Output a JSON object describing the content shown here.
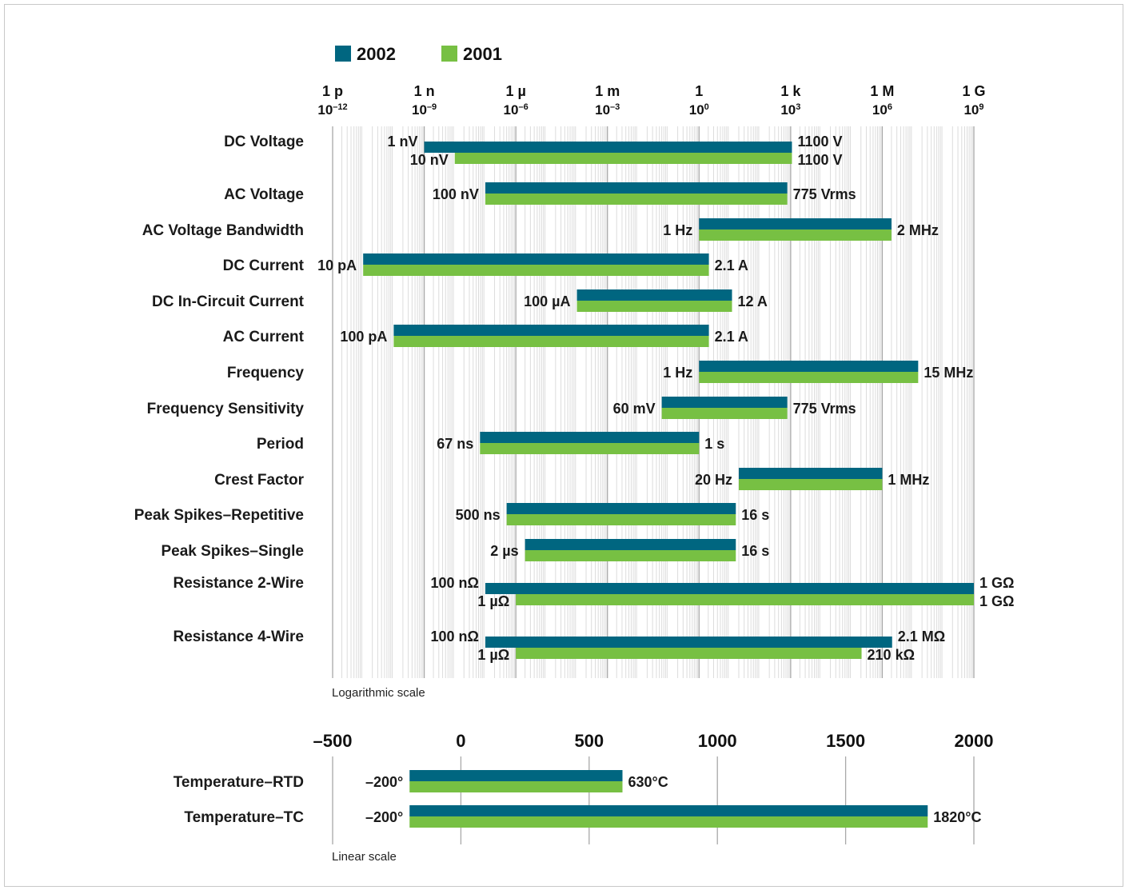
{
  "colors": {
    "s2002": "#006680",
    "s2001": "#77C043",
    "grid_major": "#a8a8a8",
    "grid_minor": "#dcdcdc"
  },
  "legend": [
    {
      "name": "2002"
    },
    {
      "name": "2001"
    }
  ],
  "chart_data": [
    {
      "type": "bar",
      "orientation": "horizontal-range",
      "scale": "log",
      "xlim_exp": [
        -12,
        9
      ],
      "ticks": [
        {
          "prefix": "1 p",
          "power": "10",
          "exp": "–12"
        },
        {
          "prefix": "1 n",
          "power": "10",
          "exp": "–9"
        },
        {
          "prefix": "1 µ",
          "power": "10",
          "exp": "–6"
        },
        {
          "prefix": "1 m",
          "power": "10",
          "exp": "–3"
        },
        {
          "prefix": "1",
          "power": "10",
          "exp": "0"
        },
        {
          "prefix": "1 k",
          "power": "10",
          "exp": "3"
        },
        {
          "prefix": "1 M",
          "power": "10",
          "exp": "6"
        },
        {
          "prefix": "1 G",
          "power": "10",
          "exp": "9"
        }
      ],
      "scale_note": "Logarithmic scale",
      "series": [
        "2002",
        "2001"
      ],
      "rows": [
        {
          "label": "DC Voltage",
          "split": true,
          "s2002": {
            "min": 1e-09,
            "max": 1100,
            "min_label": "1 nV",
            "max_label": "1100 V"
          },
          "s2001": {
            "min": 1e-08,
            "max": 1100,
            "min_label": "10 nV",
            "max_label": "1100 V"
          }
        },
        {
          "label": "AC Voltage",
          "min": 1e-07,
          "max": 775,
          "min_label": "100 nV",
          "max_label": "775 Vrms"
        },
        {
          "label": "AC Voltage Bandwidth",
          "min": 1,
          "max": 2000000.0,
          "min_label": "1 Hz",
          "max_label": "2 MHz"
        },
        {
          "label": "DC Current",
          "min": 1e-11,
          "max": 2.1,
          "min_label": "10 pA",
          "max_label": "2.1 A"
        },
        {
          "label": "DC In-Circuit Current",
          "min": 0.0001,
          "max": 12,
          "min_label": "100 µA",
          "max_label": "12 A"
        },
        {
          "label": "AC Current",
          "min": 1e-10,
          "max": 2.1,
          "min_label": "100 pA",
          "max_label": "2.1 A"
        },
        {
          "label": "Frequency",
          "min": 1,
          "max": 15000000.0,
          "min_label": "1 Hz",
          "max_label": "15 MHz"
        },
        {
          "label": "Frequency Sensitivity",
          "min": 0.06,
          "max": 775,
          "min_label": "60 mV",
          "max_label": "775 Vrms"
        },
        {
          "label": "Period",
          "min": 6.7e-08,
          "max": 1,
          "min_label": "67 ns",
          "max_label": "1 s"
        },
        {
          "label": "Crest Factor",
          "min": 20,
          "max": 1000000.0,
          "min_label": "20 Hz",
          "max_label": "1 MHz"
        },
        {
          "label": "Peak Spikes–Repetitive",
          "min": 5e-07,
          "max": 16,
          "min_label": "500 ns",
          "max_label": "16 s"
        },
        {
          "label": "Peak Spikes–Single",
          "min": 2e-06,
          "max": 16,
          "min_label": "2 µs",
          "max_label": "16 s"
        },
        {
          "label": "Resistance 2-Wire",
          "split": true,
          "s2002": {
            "min": 1e-07,
            "max": 1000000000.0,
            "min_label": "100 nΩ",
            "max_label": "1 GΩ"
          },
          "s2001": {
            "min": 1e-06,
            "max": 1000000000.0,
            "min_label": "1 µΩ",
            "max_label": "1 GΩ"
          }
        },
        {
          "label": "Resistance 4-Wire",
          "split": true,
          "s2002": {
            "min": 1e-07,
            "max": 2100000.0,
            "min_label": "100 nΩ",
            "max_label": "2.1 MΩ"
          },
          "s2001": {
            "min": 1e-06,
            "max": 210000.0,
            "min_label": "1 µΩ",
            "max_label": "210 kΩ"
          }
        }
      ]
    },
    {
      "type": "bar",
      "orientation": "horizontal-range",
      "scale": "linear",
      "xlim": [
        -500,
        2000
      ],
      "ticks": [
        "–500",
        "0",
        "500",
        "1000",
        "1500",
        "2000"
      ],
      "tick_values": [
        -500,
        0,
        500,
        1000,
        1500,
        2000
      ],
      "scale_note": "Linear scale",
      "series": [
        "2002",
        "2001"
      ],
      "rows": [
        {
          "label": "Temperature–RTD",
          "min": -200,
          "max": 630,
          "min_label": "–200°",
          "max_label": "630°C"
        },
        {
          "label": "Temperature–TC",
          "min": -200,
          "max": 1820,
          "min_label": "–200°",
          "max_label": "1820°C"
        }
      ]
    }
  ]
}
